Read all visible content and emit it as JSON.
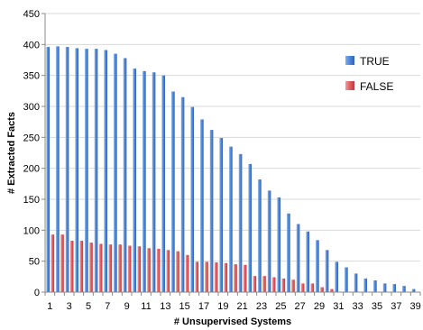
{
  "chart_data": {
    "type": "bar",
    "title": "",
    "xlabel": "# Unsupervised Systems",
    "ylabel": "# Extracted Facts",
    "ylim": [
      0,
      450
    ],
    "yticks": [
      0,
      50,
      100,
      150,
      200,
      250,
      300,
      350,
      400,
      450
    ],
    "x": [
      1,
      2,
      3,
      4,
      5,
      6,
      7,
      8,
      9,
      10,
      11,
      12,
      13,
      14,
      15,
      16,
      17,
      18,
      19,
      20,
      21,
      22,
      23,
      24,
      25,
      26,
      27,
      28,
      29,
      30,
      31,
      32,
      33,
      34,
      35,
      36,
      37,
      38,
      39
    ],
    "xtick_labels": [
      "1",
      "3",
      "5",
      "7",
      "9",
      "11",
      "13",
      "15",
      "17",
      "19",
      "21",
      "23",
      "25",
      "27",
      "29",
      "31",
      "33",
      "35",
      "37",
      "39"
    ],
    "grid": "horizontal",
    "legend_position": "right",
    "series": [
      {
        "name": "TRUE",
        "color": "#5b8fd9",
        "values": [
          396,
          397,
          396,
          394,
          393,
          393,
          391,
          385,
          378,
          361,
          357,
          355,
          350,
          324,
          315,
          299,
          279,
          262,
          249,
          235,
          223,
          207,
          182,
          164,
          153,
          127,
          110,
          98,
          84,
          68,
          49,
          40,
          30,
          22,
          19,
          14,
          13,
          10,
          5
        ]
      },
      {
        "name": "FALSE",
        "color": "#e05e62",
        "values": [
          93,
          93,
          83,
          83,
          80,
          78,
          77,
          77,
          75,
          74,
          71,
          70,
          68,
          66,
          60,
          49,
          49,
          48,
          47,
          45,
          44,
          26,
          26,
          24,
          22,
          20,
          14,
          14,
          8,
          5,
          0,
          0,
          0,
          0,
          0,
          0,
          0,
          0,
          0
        ]
      }
    ]
  }
}
